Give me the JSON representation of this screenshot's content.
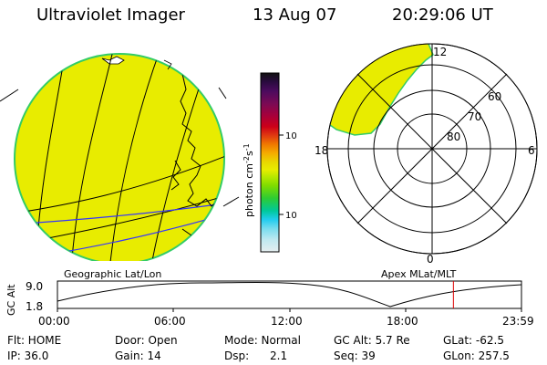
{
  "header": {
    "instrument": "Ultraviolet Imager",
    "date": "13 Aug 07",
    "time": "20:29:06 UT"
  },
  "colors": {
    "emission_fill": "#e8ec00",
    "emission_edge": "#33cc66",
    "grid_line": "#000000",
    "coastline": "#000000",
    "track_line": "#3333ff",
    "time_marker": "#dd0000"
  },
  "left_panel": {
    "label": "Geographic Lat/Lon"
  },
  "color_bar": {
    "unit_label": "photon cm",
    "unit_sup1": "-2",
    "unit_mid": "s",
    "unit_sup2": "-1",
    "tick_high": "100",
    "tick_low": "10",
    "scale": "log",
    "stops": [
      "#111111",
      "#2a0b3f",
      "#4b0b5e",
      "#7a0a55",
      "#a8003a",
      "#cc0018",
      "#e03a10",
      "#f07a00",
      "#f4ad00",
      "#e8d800",
      "#e8ec00",
      "#b8e800",
      "#7fdc00",
      "#2ecc33",
      "#00c89a",
      "#22ccee",
      "#77dcee",
      "#bde8f0",
      "#e6eef0"
    ]
  },
  "right_panel": {
    "label": "Apex MLat/MLT",
    "mlt_top": "12",
    "mlt_left": "18",
    "mlt_right": "6",
    "mlt_bottom": "0",
    "lat_labels": [
      "60",
      "70",
      "80"
    ]
  },
  "alt_plot": {
    "ylabel": "GC Alt",
    "ymax": "9.0",
    "ymin": "1.8",
    "x_ticks": [
      "00:00",
      "06:00",
      "12:00",
      "18:00",
      "23:59"
    ],
    "marker_time_hours": 20.48
  },
  "info": {
    "flt": "Flt: HOME",
    "door": "Door: Open",
    "mode": "Mode: Normal",
    "gc_alt": "GC Alt: 5.7 Re",
    "glat": "GLat: -62.5",
    "ip": "IP: 36.0",
    "gain": "Gain: 14",
    "dsp_label": "Dsp:",
    "dsp_value": "2.1",
    "seq": "Seq: 39",
    "glon": "GLon: 257.5"
  }
}
